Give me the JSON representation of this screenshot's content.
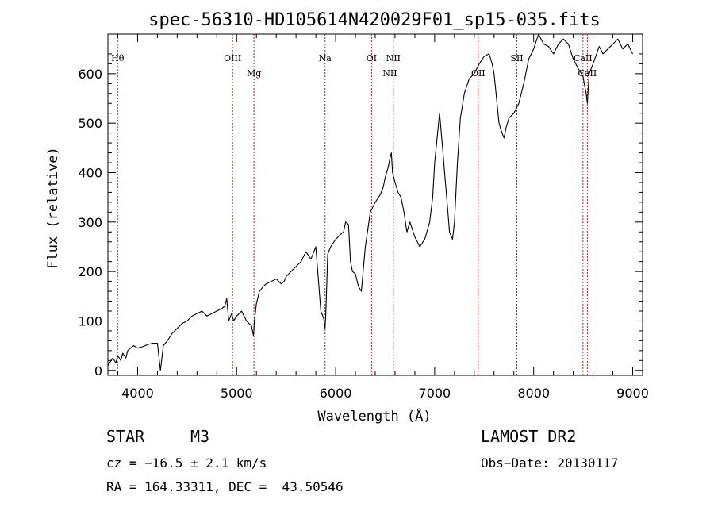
{
  "chart_data": {
    "type": "line",
    "title": "spec-56310-HD105614N420029F01_sp15-035.fits",
    "xlabel": "Wavelength (Å)",
    "ylabel": "Flux (relative)",
    "xlim": [
      3700,
      9100
    ],
    "ylim": [
      -10,
      680
    ],
    "x_ticks": [
      4000,
      5000,
      6000,
      7000,
      8000,
      9000
    ],
    "y_ticks": [
      0,
      100,
      200,
      300,
      400,
      500,
      600
    ],
    "grid": false,
    "line_color": "#000000",
    "marker_color": "#b22222",
    "series": [
      {
        "x": [
          3700,
          3750,
          3780,
          3800,
          3830,
          3850,
          3880,
          3900,
          3930,
          3960,
          4000,
          4050,
          4100,
          4150,
          4200,
          4230,
          4260,
          4300,
          4350,
          4400,
          4450,
          4500,
          4550,
          4600,
          4650,
          4700,
          4750,
          4800,
          4850,
          4880,
          4900,
          4920,
          4950,
          4970,
          5000,
          5050,
          5100,
          5150,
          5170,
          5180,
          5200,
          5230,
          5270,
          5300,
          5350,
          5400,
          5450,
          5480,
          5500,
          5550,
          5600,
          5650,
          5700,
          5750,
          5800,
          5850,
          5880,
          5893,
          5900,
          5920,
          5950,
          6000,
          6050,
          6080,
          6100,
          6130,
          6150,
          6170,
          6200,
          6230,
          6260,
          6300,
          6350,
          6400,
          6450,
          6480,
          6500,
          6530,
          6550,
          6563,
          6575,
          6600,
          6630,
          6660,
          6690,
          6720,
          6750,
          6800,
          6850,
          6900,
          6950,
          6980,
          7000,
          7030,
          7050,
          7080,
          7100,
          7130,
          7150,
          7180,
          7200,
          7230,
          7260,
          7300,
          7350,
          7400,
          7450,
          7500,
          7550,
          7580,
          7600,
          7620,
          7650,
          7680,
          7700,
          7720,
          7750,
          7800,
          7850,
          7900,
          7950,
          8000,
          8050,
          8100,
          8150,
          8200,
          8250,
          8300,
          8350,
          8400,
          8450,
          8498,
          8510,
          8530,
          8542,
          8560,
          8600,
          8662,
          8700,
          8750,
          8800,
          8850,
          8900,
          8950,
          9000
        ],
        "y": [
          10,
          25,
          15,
          30,
          20,
          35,
          25,
          40,
          45,
          50,
          45,
          48,
          52,
          55,
          55,
          0,
          50,
          60,
          75,
          85,
          95,
          100,
          110,
          115,
          120,
          110,
          115,
          120,
          125,
          130,
          145,
          100,
          115,
          100,
          110,
          120,
          100,
          90,
          70,
          100,
          135,
          160,
          170,
          175,
          180,
          185,
          175,
          180,
          190,
          200,
          210,
          220,
          240,
          225,
          250,
          120,
          105,
          85,
          110,
          235,
          250,
          265,
          275,
          280,
          300,
          295,
          220,
          200,
          195,
          170,
          160,
          250,
          320,
          340,
          355,
          370,
          390,
          410,
          430,
          440,
          400,
          380,
          360,
          350,
          320,
          280,
          300,
          270,
          250,
          265,
          300,
          350,
          420,
          480,
          520,
          450,
          400,
          330,
          280,
          265,
          300,
          420,
          510,
          560,
          590,
          600,
          620,
          635,
          640,
          620,
          600,
          560,
          500,
          480,
          470,
          490,
          510,
          520,
          540,
          580,
          630,
          650,
          680,
          660,
          655,
          640,
          660,
          670,
          660,
          630,
          610,
          595,
          580,
          560,
          540,
          600,
          620,
          655,
          640,
          650,
          660,
          670,
          650,
          660,
          640
        ]
      }
    ],
    "line_markers": [
      {
        "label": "Hθ",
        "x": 3798,
        "label_row": "upper"
      },
      {
        "label": "OIII",
        "x": 4959,
        "label_row": "upper"
      },
      {
        "label": "Mg",
        "x": 5175,
        "label_row": "lower"
      },
      {
        "label": "Na",
        "x": 5893,
        "label_row": "upper"
      },
      {
        "label": "OI",
        "x": 6363,
        "label_row": "upper"
      },
      {
        "label": "NII",
        "x": 6548,
        "label_row": "lower"
      },
      {
        "label": "NII",
        "x": 6583,
        "label_row": "upper"
      },
      {
        "label": "OII",
        "x": 7440,
        "label_row": "lower"
      },
      {
        "label": "SII",
        "x": 7830,
        "label_row": "upper"
      },
      {
        "label": "CaII",
        "x": 8498,
        "label_row": "upper"
      },
      {
        "label": "CaII",
        "x": 8542,
        "label_row": "lower"
      }
    ]
  },
  "info": {
    "object_class": "STAR",
    "subclass": "M3",
    "survey": "LAMOST DR2",
    "velocity": "cz = −16.5 ± 2.1 km/s",
    "obs_date": "Obs−Date: 20130117",
    "coords": "RA = 164.33311, DEC =  43.50546"
  }
}
